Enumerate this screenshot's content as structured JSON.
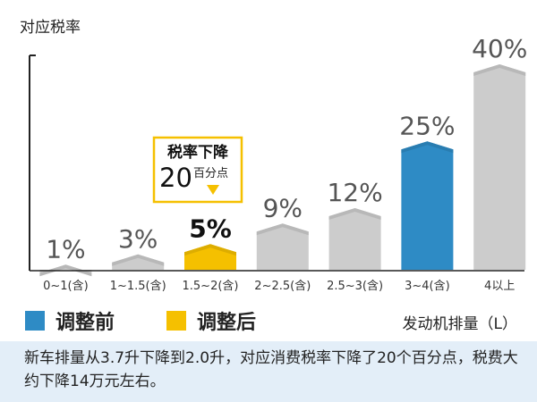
{
  "chart_data": {
    "type": "bar",
    "ylabel": "对应税率",
    "xlabel": "发动机排量（L）",
    "categories": [
      "0~1(含)",
      "1~1.5(含)",
      "1.5~2(含)",
      "2~2.5(含)",
      "2.5~3(含)",
      "3~4(含)",
      "4以上"
    ],
    "values": [
      1,
      3,
      5,
      9,
      12,
      25,
      40
    ],
    "value_labels": [
      "1%",
      "3%",
      "5%",
      "9%",
      "12%",
      "25%",
      "40%"
    ],
    "bar_colors": [
      "#cccccc",
      "#cccccc",
      "#f5c000",
      "#cccccc",
      "#cccccc",
      "#2e8bc5",
      "#cccccc"
    ],
    "ylim": [
      0,
      40
    ],
    "grid": false,
    "callout": {
      "target_index": 2,
      "title": "税率下降",
      "number": "20",
      "unit": "百分点",
      "border_color": "#f5c000"
    }
  },
  "legend": [
    {
      "label": "调整前",
      "color": "#2e8bc5"
    },
    {
      "label": "调整后",
      "color": "#f5c000"
    }
  ],
  "caption": "新车排量从3.7升下降到2.0升，对应消费税率下降了20个百分点，税费大约下降14万元左右。"
}
